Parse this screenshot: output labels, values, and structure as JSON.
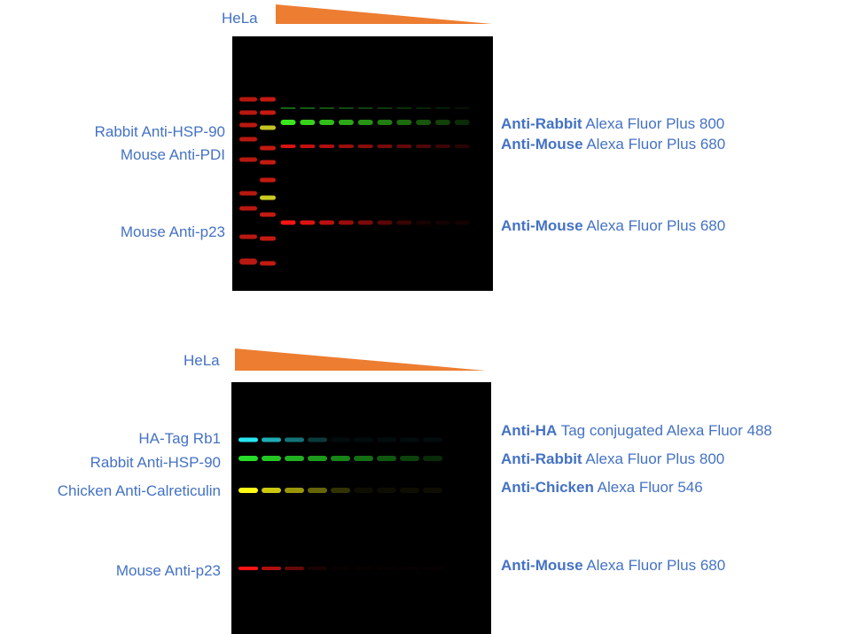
{
  "panels": [
    {
      "sample_label": "HeLa",
      "left_labels": [
        "Rabbit Anti-HSP-90",
        "Mouse Anti-PDI",
        "Mouse Anti-p23"
      ],
      "right_labels": [
        {
          "bold": "Anti-Rabbit",
          "rest": "Alexa Fluor Plus 800"
        },
        {
          "bold": "Anti-Mouse",
          "rest": "Alexa Fluor Plus 680"
        },
        {
          "bold": "Anti-Mouse",
          "rest": "Alexa Fluor Plus 680"
        }
      ]
    },
    {
      "sample_label": "HeLa",
      "left_labels": [
        "HA-Tag Rb1",
        "Rabbit Anti-HSP-90",
        "Chicken Anti-Calreticulin",
        "Mouse Anti-p23"
      ],
      "right_labels": [
        {
          "bold": "Anti-HA",
          "rest": "Tag conjugated Alexa Fluor 488"
        },
        {
          "bold": "Anti-Rabbit",
          "rest": "Alexa Fluor Plus 800"
        },
        {
          "bold": "Anti-Chicken",
          "rest": "Alexa Fluor 546"
        },
        {
          "bold": "Anti-Mouse",
          "rest": "Alexa Fluor Plus 680"
        }
      ]
    }
  ],
  "colors": {
    "text": "#4472C4",
    "gradient": "#ED7D31"
  }
}
